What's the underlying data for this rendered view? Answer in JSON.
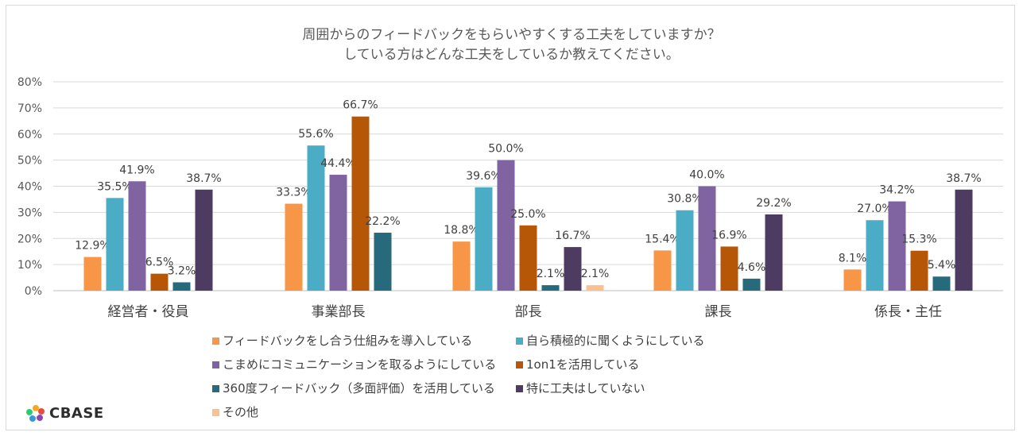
{
  "chart_data": {
    "type": "bar",
    "title_lines": [
      "周囲からのフィードバックをもらいやすくする工夫をしていますか？",
      "している方はどんな工夫をしているか教えてください。"
    ],
    "categories": [
      "経営者・役員",
      "事業部長",
      "部長",
      "課長",
      "係長・主任"
    ],
    "ylim": [
      0,
      80
    ],
    "yticks": [
      "0%",
      "10%",
      "20%",
      "30%",
      "40%",
      "50%",
      "60%",
      "70%",
      "80%"
    ],
    "grid": true,
    "legend_position": "bottom",
    "series": [
      {
        "name": "フィードバックをし合う仕組みを導入している",
        "color": "#f79646",
        "values": [
          12.9,
          33.3,
          18.8,
          15.4,
          8.1
        ],
        "labels": [
          "12.9%",
          "33.3%",
          "18.8%",
          "15.4%",
          "8.1%"
        ]
      },
      {
        "name": "自ら積極的に聞くようにしている",
        "color": "#4bacc6",
        "values": [
          35.5,
          55.6,
          39.6,
          30.8,
          27.0
        ],
        "labels": [
          "35.5%",
          "55.6%",
          "39.6%",
          "30.8%",
          "27.0%"
        ]
      },
      {
        "name": "こまめにコミュニケーションを取るようにしている",
        "color": "#8064a2",
        "values": [
          41.9,
          44.4,
          50.0,
          40.0,
          34.2
        ],
        "labels": [
          "41.9%",
          "44.4%",
          "50.0%",
          "40.0%",
          "34.2%"
        ]
      },
      {
        "name": "1on1を活用している",
        "color": "#b65708",
        "values": [
          6.5,
          66.7,
          25.0,
          16.9,
          15.3
        ],
        "labels": [
          "6.5%",
          "66.7%",
          "25.0%",
          "16.9%",
          "15.3%"
        ]
      },
      {
        "name": "360度フィードバック（多面評価）を活用している",
        "color": "#276a7c",
        "values": [
          3.2,
          22.2,
          2.1,
          4.6,
          5.4
        ],
        "labels": [
          "3.2%",
          "22.2%",
          "2.1%",
          "4.6%",
          "5.4%"
        ]
      },
      {
        "name": "特に工夫はしていない",
        "color": "#4d3b62",
        "values": [
          38.7,
          null,
          16.7,
          29.2,
          38.7
        ],
        "labels": [
          "38.7%",
          "",
          "16.7%",
          "29.2%",
          "38.7%"
        ]
      },
      {
        "name": "その他",
        "color": "#fac090",
        "values": [
          null,
          null,
          2.1,
          null,
          null
        ],
        "labels": [
          "",
          "",
          "2.1%",
          "",
          ""
        ]
      }
    ]
  },
  "brand": {
    "name": "CBASE"
  }
}
